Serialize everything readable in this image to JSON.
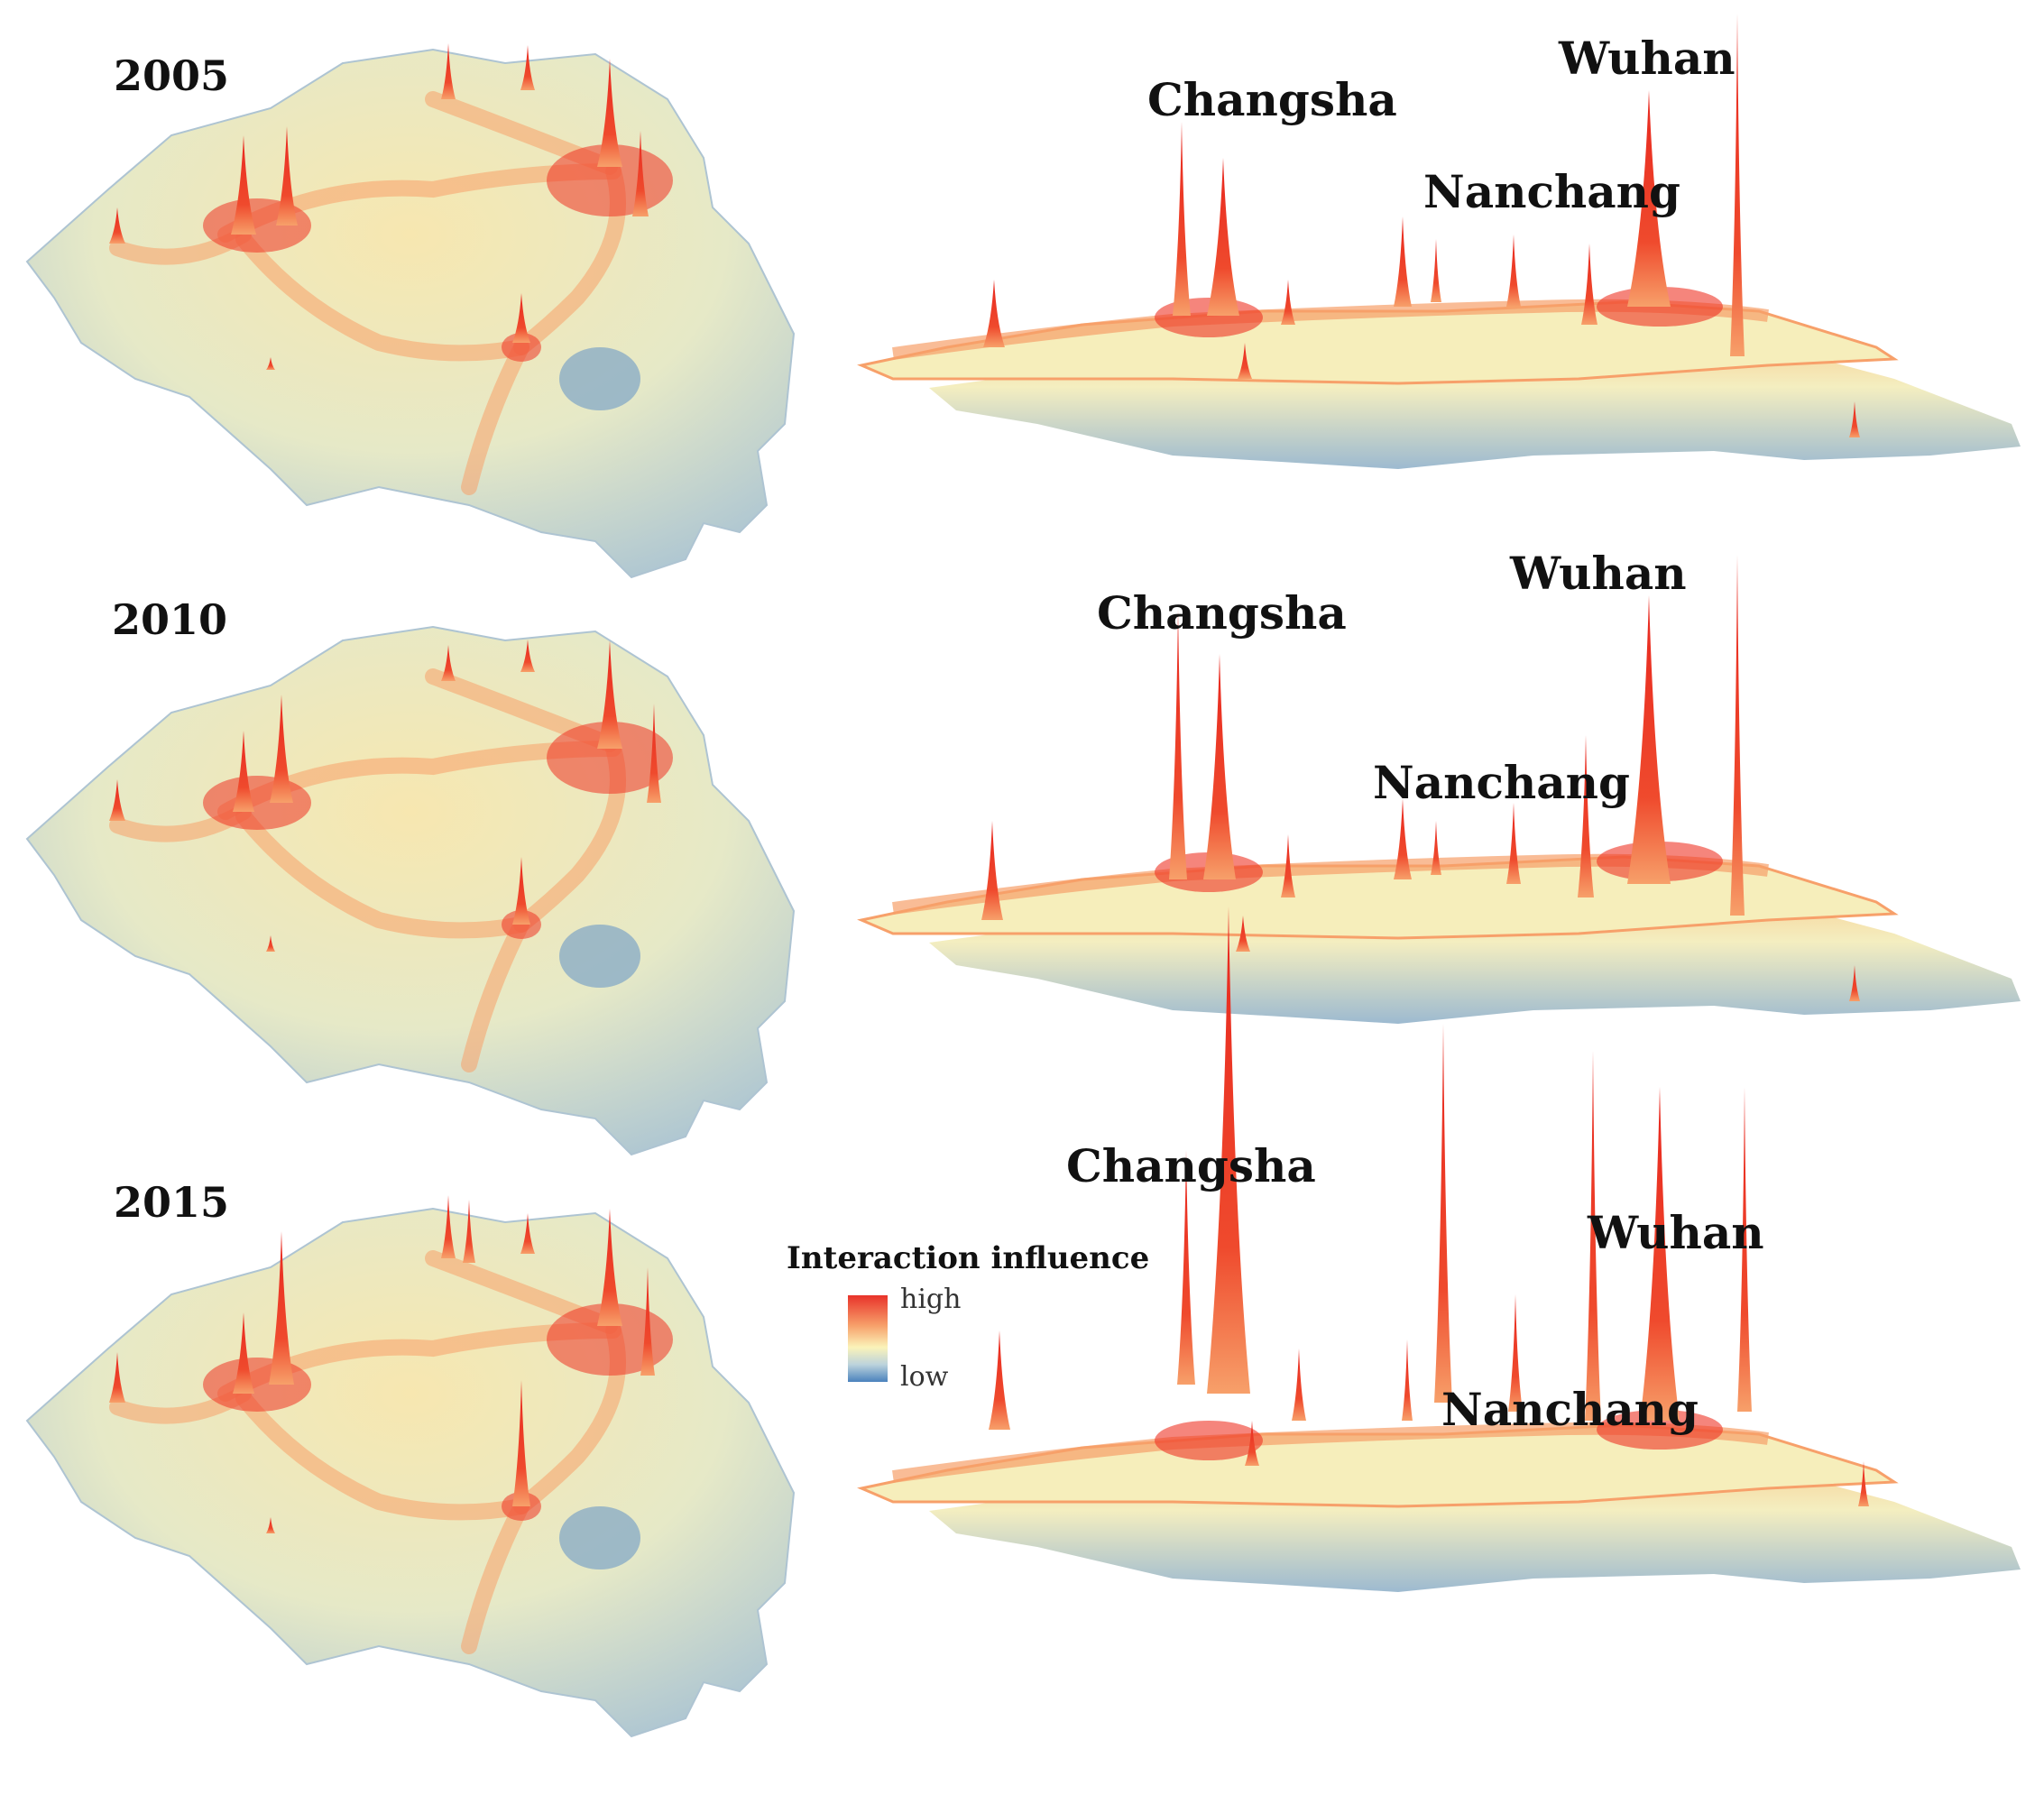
{
  "panels": [
    {
      "year": "2005",
      "labels": {
        "changsha": "Changsha",
        "nanchang": "Nanchang",
        "wuhan": "Wuhan"
      }
    },
    {
      "year": "2010",
      "labels": {
        "changsha": "Changsha",
        "nanchang": "Nanchang",
        "wuhan": "Wuhan"
      }
    },
    {
      "year": "2015",
      "labels": {
        "changsha": "Changsha",
        "nanchang": "Nanchang",
        "wuhan": "Wuhan"
      }
    }
  ],
  "legend": {
    "title": "Interaction influence",
    "high": "high",
    "low": "low",
    "colors": {
      "high": "#e8322a",
      "mid": "#fbf3b9",
      "low": "#4a82bd"
    }
  },
  "colors": {
    "peak": "#ee3324",
    "ridge": "#f7a06a",
    "plain": "#f6eebb",
    "terrain": "#b8cdd6",
    "lake": "#6c9ac6"
  }
}
